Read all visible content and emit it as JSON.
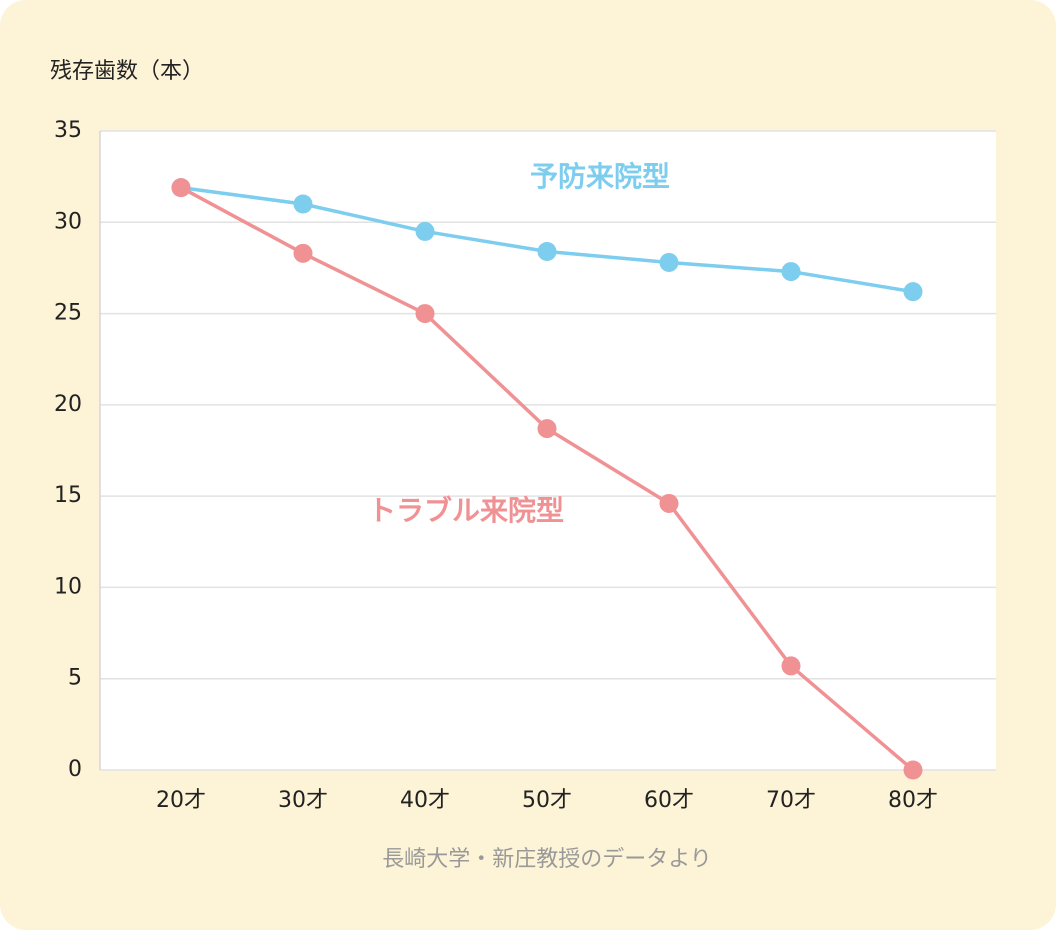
{
  "chart_data": {
    "type": "line",
    "y_label": "残存歯数（本）",
    "source": "長崎大学・新庄教授のデータより",
    "categories": [
      "20才",
      "30才",
      "40才",
      "50才",
      "60才",
      "70才",
      "80才"
    ],
    "series": [
      {
        "name": "予防来院型",
        "color": "#7dcdef",
        "values": [
          31.9,
          31.0,
          29.5,
          28.4,
          27.8,
          27.3,
          26.2
        ]
      },
      {
        "name": "トラブル来院型",
        "color": "#f09194",
        "values": [
          31.9,
          28.3,
          25.0,
          18.7,
          14.6,
          5.7,
          0
        ]
      }
    ],
    "ylim": [
      0,
      35
    ],
    "yticks": [
      0,
      5,
      10,
      15,
      20,
      25,
      30,
      35
    ],
    "grid": true
  }
}
